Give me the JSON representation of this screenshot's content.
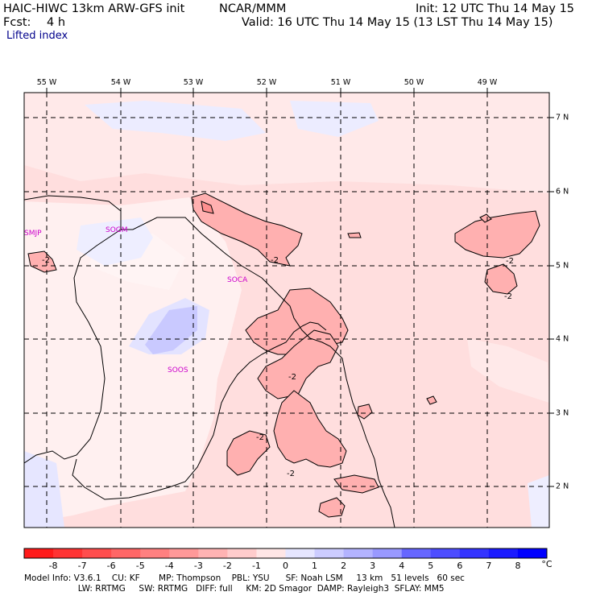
{
  "header": {
    "model": "HAIC-HIWC 13km ARW-GFS init",
    "org": "NCAR/MMM",
    "init": "Init: 12 UTC Thu 14 May 15",
    "fcst_label": "Fcst:",
    "fcst_value": "4 h",
    "valid": "Valid: 16 UTC Thu 14 May 15 (13 LST Thu 14 May 15)",
    "field": "Lifted index"
  },
  "map": {
    "lon_labels": [
      "55 W",
      "54 W",
      "53 W",
      "52 W",
      "51 W",
      "50 W",
      "49 W"
    ],
    "lat_labels": [
      "7 N",
      "6 N",
      "5 N",
      "4 N",
      "3 N",
      "2 N"
    ],
    "stations": [
      "SMJP",
      "SOGM",
      "SOCA",
      "SOOS"
    ],
    "contour_label": "-2"
  },
  "colorbar": {
    "ticks": [
      "-8",
      "-7",
      "-6",
      "-5",
      "-4",
      "-3",
      "-2",
      "-1",
      "0",
      "1",
      "2",
      "3",
      "4",
      "5",
      "6",
      "7",
      "8"
    ],
    "unit": "°C",
    "colors": [
      "#ff1a1a",
      "#ff3333",
      "#ff4d4d",
      "#ff6666",
      "#ff8080",
      "#ff9999",
      "#ffb3b3",
      "#ffcccc",
      "#ffe6e6",
      "#e6e6ff",
      "#ccccff",
      "#b3b3ff",
      "#9999ff",
      "#6666ff",
      "#4d4dff",
      "#3333ff",
      "#1a1aff",
      "#0000ff"
    ]
  },
  "model_info": {
    "line1": "Model Info: V3.6.1    CU: KF       MP: Thompson    PBL: YSU      SF: Noah LSM     13 km   51 levels   60 sec",
    "line2": "                    LW: RRTMG     SW: RRTMG   DIFF: full     KM: 2D Smagor  DAMP: Rayleigh3  SFLAY: MM5"
  }
}
